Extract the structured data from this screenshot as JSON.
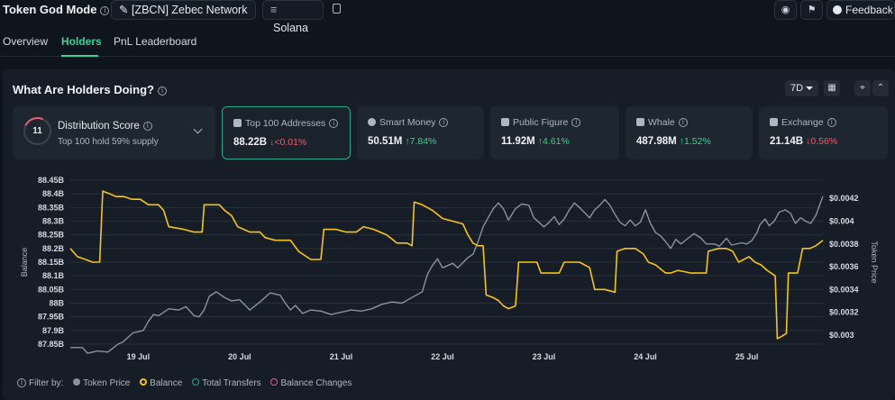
{
  "header": {
    "title": "Token God Mode",
    "token_label": "[ZBCN] Zebec Network",
    "chain_label": "Solana",
    "feedback_label": "Feedback"
  },
  "tabs": [
    {
      "label": "Overview",
      "active": false
    },
    {
      "label": "Holders",
      "active": true
    },
    {
      "label": "PnL Leaderboard",
      "active": false
    }
  ],
  "section": {
    "title": "What Are Holders Doing?",
    "range": "7D"
  },
  "distribution": {
    "score": "11",
    "title": "Distribution Score",
    "subtitle": "Top 100 hold 59% supply"
  },
  "cards": [
    {
      "label": "Top 100 Addresses",
      "value": "88.22B",
      "change": "<0.01%",
      "direction": "down",
      "icon": "address-book-icon"
    },
    {
      "label": "Smart Money",
      "value": "50.51M",
      "change": "7.84%",
      "direction": "up",
      "icon": "smart-money-icon"
    },
    {
      "label": "Public Figure",
      "value": "11.92M",
      "change": "4.61%",
      "direction": "up",
      "icon": "public-figure-icon"
    },
    {
      "label": "Whale",
      "value": "487.98M",
      "change": "1.52%",
      "direction": "up",
      "icon": "whale-icon"
    },
    {
      "label": "Exchange",
      "value": "21.14B",
      "change": "0.56%",
      "direction": "down",
      "icon": "exchange-icon"
    }
  ],
  "legend": {
    "filter_label": "Filter by:",
    "items": [
      {
        "label": "Token Price",
        "color": "#8a929c",
        "style": "filled"
      },
      {
        "label": "Balance",
        "color": "#f5c518",
        "style": "ring"
      },
      {
        "label": "Total Transfers",
        "color": "#2aa88d",
        "style": "ring"
      },
      {
        "label": "Balance Changes",
        "color": "#d65b8a",
        "style": "ring"
      }
    ]
  },
  "chart_data": {
    "type": "line",
    "x_tick_labels": [
      "19 Jul",
      "20 Jul",
      "21 Jul",
      "22 Jul",
      "23 Jul",
      "24 Jul",
      "25 Jul"
    ],
    "left_axis": {
      "label": "Balance",
      "ticks": [
        "88.45B",
        "88.4B",
        "88.35B",
        "88.3B",
        "88.25B",
        "88.2B",
        "88.15B",
        "88.1B",
        "88.05B",
        "88B",
        "87.95B",
        "87.9B",
        "87.85B"
      ],
      "range": [
        87.85,
        88.45
      ],
      "unit": "B"
    },
    "right_axis": {
      "label": "Token Price",
      "ticks": [
        "$0.0042",
        "$0.004",
        "$0.0038",
        "$0.0036",
        "$0.0034",
        "$0.0032",
        "$0.003"
      ],
      "range": [
        0.00292,
        0.00436
      ]
    },
    "x_range": [
      18.33,
      25.75
    ],
    "grid": true,
    "series": [
      {
        "name": "Token Price",
        "color": "#8a929c",
        "axis": "right",
        "points": [
          [
            18.33,
            0.00289
          ],
          [
            18.45,
            0.00289
          ],
          [
            18.5,
            0.00284
          ],
          [
            18.6,
            0.00286
          ],
          [
            18.7,
            0.00285
          ],
          [
            18.8,
            0.00292
          ],
          [
            18.85,
            0.00294
          ],
          [
            18.95,
            0.00302
          ],
          [
            19.05,
            0.00304
          ],
          [
            19.1,
            0.00312
          ],
          [
            19.15,
            0.00318
          ],
          [
            19.2,
            0.00317
          ],
          [
            19.3,
            0.00323
          ],
          [
            19.4,
            0.00322
          ],
          [
            19.47,
            0.00325
          ],
          [
            19.55,
            0.00317
          ],
          [
            19.6,
            0.00316
          ],
          [
            19.65,
            0.00322
          ],
          [
            19.7,
            0.00334
          ],
          [
            19.77,
            0.00338
          ],
          [
            19.85,
            0.00333
          ],
          [
            19.92,
            0.0033
          ],
          [
            20.0,
            0.00331
          ],
          [
            20.1,
            0.00322
          ],
          [
            20.2,
            0.00329
          ],
          [
            20.3,
            0.00337
          ],
          [
            20.4,
            0.00335
          ],
          [
            20.45,
            0.00328
          ],
          [
            20.5,
            0.00322
          ],
          [
            20.55,
            0.00326
          ],
          [
            20.62,
            0.00319
          ],
          [
            20.7,
            0.00322
          ],
          [
            20.8,
            0.00321
          ],
          [
            20.9,
            0.00318
          ],
          [
            21.0,
            0.0032
          ],
          [
            21.1,
            0.00322
          ],
          [
            21.2,
            0.00321
          ],
          [
            21.3,
            0.00323
          ],
          [
            21.4,
            0.00327
          ],
          [
            21.5,
            0.00329
          ],
          [
            21.6,
            0.00328
          ],
          [
            21.7,
            0.00333
          ],
          [
            21.8,
            0.00338
          ],
          [
            21.85,
            0.00353
          ],
          [
            21.9,
            0.00361
          ],
          [
            21.95,
            0.00367
          ],
          [
            22.0,
            0.00359
          ],
          [
            22.1,
            0.00363
          ],
          [
            22.15,
            0.00359
          ],
          [
            22.25,
            0.00368
          ],
          [
            22.3,
            0.00371
          ],
          [
            22.35,
            0.00382
          ],
          [
            22.4,
            0.00395
          ],
          [
            22.45,
            0.00403
          ],
          [
            22.5,
            0.00411
          ],
          [
            22.55,
            0.00416
          ],
          [
            22.6,
            0.00411
          ],
          [
            22.65,
            0.00401
          ],
          [
            22.72,
            0.00411
          ],
          [
            22.78,
            0.00415
          ],
          [
            22.85,
            0.00414
          ],
          [
            22.9,
            0.00403
          ],
          [
            23.0,
            0.00395
          ],
          [
            23.05,
            0.00399
          ],
          [
            23.1,
            0.00404
          ],
          [
            23.15,
            0.00397
          ],
          [
            23.2,
            0.00402
          ],
          [
            23.25,
            0.0041
          ],
          [
            23.3,
            0.00416
          ],
          [
            23.35,
            0.00412
          ],
          [
            23.45,
            0.00403
          ],
          [
            23.5,
            0.0041
          ],
          [
            23.55,
            0.00414
          ],
          [
            23.6,
            0.00419
          ],
          [
            23.65,
            0.00414
          ],
          [
            23.7,
            0.00406
          ],
          [
            23.75,
            0.00399
          ],
          [
            23.8,
            0.00396
          ],
          [
            23.85,
            0.00401
          ],
          [
            23.9,
            0.00396
          ],
          [
            23.95,
            0.00399
          ],
          [
            24.0,
            0.0041
          ],
          [
            24.05,
            0.00398
          ],
          [
            24.1,
            0.0039
          ],
          [
            24.15,
            0.00387
          ],
          [
            24.2,
            0.00382
          ],
          [
            24.25,
            0.00376
          ],
          [
            24.3,
            0.00384
          ],
          [
            24.35,
            0.0038
          ],
          [
            24.42,
            0.00385
          ],
          [
            24.48,
            0.00389
          ],
          [
            24.55,
            0.00385
          ],
          [
            24.6,
            0.0038
          ],
          [
            24.68,
            0.0038
          ],
          [
            24.73,
            0.00378
          ],
          [
            24.8,
            0.00385
          ],
          [
            24.85,
            0.00379
          ],
          [
            24.95,
            0.00381
          ],
          [
            25.0,
            0.0038
          ],
          [
            25.05,
            0.00383
          ],
          [
            25.1,
            0.0039
          ],
          [
            25.13,
            0.00397
          ],
          [
            25.18,
            0.00402
          ],
          [
            25.22,
            0.00396
          ],
          [
            25.27,
            0.004
          ],
          [
            25.32,
            0.00408
          ],
          [
            25.38,
            0.0041
          ],
          [
            25.43,
            0.00407
          ],
          [
            25.48,
            0.00398
          ],
          [
            25.53,
            0.00403
          ],
          [
            25.58,
            0.004
          ],
          [
            25.63,
            0.00398
          ],
          [
            25.68,
            0.00405
          ],
          [
            25.75,
            0.00422
          ]
        ]
      },
      {
        "name": "Balance",
        "color": "#f5c518",
        "axis": "left",
        "points": [
          [
            18.33,
            88.2
          ],
          [
            18.4,
            88.17
          ],
          [
            18.48,
            88.16
          ],
          [
            18.55,
            88.15
          ],
          [
            18.62,
            88.15
          ],
          [
            18.65,
            88.41
          ],
          [
            18.72,
            88.4
          ],
          [
            18.78,
            88.39
          ],
          [
            18.86,
            88.39
          ],
          [
            18.94,
            88.38
          ],
          [
            19.02,
            88.38
          ],
          [
            19.1,
            88.36
          ],
          [
            19.2,
            88.36
          ],
          [
            19.25,
            88.34
          ],
          [
            19.3,
            88.28
          ],
          [
            19.45,
            88.27
          ],
          [
            19.55,
            88.26
          ],
          [
            19.63,
            88.26
          ],
          [
            19.65,
            88.36
          ],
          [
            19.8,
            88.36
          ],
          [
            19.85,
            88.34
          ],
          [
            19.92,
            88.32
          ],
          [
            19.98,
            88.28
          ],
          [
            20.1,
            88.26
          ],
          [
            20.2,
            88.26
          ],
          [
            20.25,
            88.24
          ],
          [
            20.35,
            88.23
          ],
          [
            20.5,
            88.23
          ],
          [
            20.58,
            88.19
          ],
          [
            20.7,
            88.16
          ],
          [
            20.8,
            88.16
          ],
          [
            20.83,
            88.27
          ],
          [
            20.95,
            88.27
          ],
          [
            21.05,
            88.26
          ],
          [
            21.15,
            88.26
          ],
          [
            21.22,
            88.28
          ],
          [
            21.32,
            88.27
          ],
          [
            21.45,
            88.25
          ],
          [
            21.55,
            88.22
          ],
          [
            21.65,
            88.22
          ],
          [
            21.7,
            88.21
          ],
          [
            21.72,
            88.37
          ],
          [
            21.8,
            88.36
          ],
          [
            21.9,
            88.34
          ],
          [
            22.0,
            88.31
          ],
          [
            22.1,
            88.3
          ],
          [
            22.2,
            88.29
          ],
          [
            22.25,
            88.25
          ],
          [
            22.3,
            88.22
          ],
          [
            22.35,
            88.21
          ],
          [
            22.4,
            88.21
          ],
          [
            22.43,
            88.03
          ],
          [
            22.5,
            88.02
          ],
          [
            22.55,
            88.01
          ],
          [
            22.6,
            87.99
          ],
          [
            22.65,
            87.98
          ],
          [
            22.72,
            87.99
          ],
          [
            22.75,
            88.15
          ],
          [
            22.85,
            88.15
          ],
          [
            22.93,
            88.15
          ],
          [
            22.97,
            88.11
          ],
          [
            23.05,
            88.11
          ],
          [
            23.15,
            88.11
          ],
          [
            23.2,
            88.15
          ],
          [
            23.35,
            88.15
          ],
          [
            23.45,
            88.13
          ],
          [
            23.5,
            88.05
          ],
          [
            23.6,
            88.05
          ],
          [
            23.7,
            88.04
          ],
          [
            23.72,
            88.19
          ],
          [
            23.8,
            88.2
          ],
          [
            23.9,
            88.2
          ],
          [
            23.98,
            88.18
          ],
          [
            24.03,
            88.15
          ],
          [
            24.1,
            88.14
          ],
          [
            24.2,
            88.11
          ],
          [
            24.25,
            88.11
          ],
          [
            24.32,
            88.12
          ],
          [
            24.45,
            88.11
          ],
          [
            24.55,
            88.11
          ],
          [
            24.6,
            88.11
          ],
          [
            24.62,
            88.19
          ],
          [
            24.72,
            88.2
          ],
          [
            24.8,
            88.2
          ],
          [
            24.86,
            88.19
          ],
          [
            24.92,
            88.15
          ],
          [
            25.02,
            88.17
          ],
          [
            25.08,
            88.15
          ],
          [
            25.14,
            88.14
          ],
          [
            25.2,
            88.12
          ],
          [
            25.28,
            88.1
          ],
          [
            25.3,
            87.87
          ],
          [
            25.35,
            87.88
          ],
          [
            25.39,
            87.89
          ],
          [
            25.41,
            88.11
          ],
          [
            25.5,
            88.11
          ],
          [
            25.55,
            88.2
          ],
          [
            25.62,
            88.2
          ],
          [
            25.68,
            88.21
          ],
          [
            25.75,
            88.23
          ]
        ]
      }
    ]
  }
}
